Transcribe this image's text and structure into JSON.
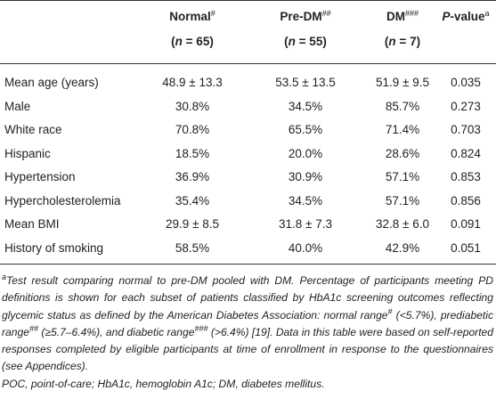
{
  "table": {
    "header": [
      {
        "line1": [
          {
            "text": "Normal",
            "bold": true
          },
          {
            "text": "#",
            "sup": true
          }
        ],
        "line2": [
          {
            "text": "(",
            "bold": true
          },
          {
            "text": "n",
            "bold": true,
            "italic": true
          },
          {
            "text": " = 65)",
            "bold": true
          }
        ]
      },
      {
        "line1": [
          {
            "text": "Pre-DM",
            "bold": true
          },
          {
            "text": "##",
            "sup": true
          }
        ],
        "line2": [
          {
            "text": "(",
            "bold": true
          },
          {
            "text": "n",
            "bold": true,
            "italic": true
          },
          {
            "text": " = 55)",
            "bold": true
          }
        ]
      },
      {
        "line1": [
          {
            "text": "DM",
            "bold": true
          },
          {
            "text": "###",
            "sup": true
          }
        ],
        "line2": [
          {
            "text": "(",
            "bold": true
          },
          {
            "text": "n",
            "bold": true,
            "italic": true
          },
          {
            "text": " = 7)",
            "bold": true
          }
        ]
      },
      {
        "line1": [
          {
            "text": "P",
            "bold": true,
            "italic": true
          },
          {
            "text": "-value",
            "bold": true
          },
          {
            "text": "a",
            "sup": true
          }
        ],
        "line2": []
      }
    ],
    "rows": [
      [
        "Mean age (years)",
        "48.9 ± 13.3",
        "53.5 ± 13.5",
        "51.9 ± 9.5",
        "0.035"
      ],
      [
        "Male",
        "30.8%",
        "34.5%",
        "85.7%",
        "0.273"
      ],
      [
        "White race",
        "70.8%",
        "65.5%",
        "71.4%",
        "0.703"
      ],
      [
        "Hispanic",
        "18.5%",
        "20.0%",
        "28.6%",
        "0.824"
      ],
      [
        "Hypertension",
        "36.9%",
        "30.9%",
        "57.1%",
        "0.853"
      ],
      [
        "Hypercholesterolemia",
        "35.4%",
        "34.5%",
        "57.1%",
        "0.856"
      ],
      [
        "Mean BMI",
        "29.9 ± 8.5",
        "31.8 ± 7.3",
        "32.8 ± 6.0",
        "0.091"
      ],
      [
        "History of smoking",
        "58.5%",
        "40.0%",
        "42.9%",
        "0.051"
      ]
    ]
  },
  "footnote": [
    {
      "text": "a",
      "sup": true
    },
    {
      "text": "Test result comparing normal to pre-DM pooled with DM. Percentage of participants meeting PD definitions is shown for each subset of patients classified by HbA1c screening outcomes reflecting glycemic status as defined by the American Diabetes Association: normal range"
    },
    {
      "text": "#",
      "sup": true
    },
    {
      "text": " (<5.7%), prediabetic range"
    },
    {
      "text": "##",
      "sup": true
    },
    {
      "text": " (≥5.7–6.4%), and diabetic range"
    },
    {
      "text": "###",
      "sup": true
    },
    {
      "text": " (>6.4%) [19]. Data in this table were based on self-reported responses completed by eligible participants at time of enrollment in response to the questionnaires (see Appendices)."
    }
  ],
  "abbreviations": "POC, point-of-care; HbA1c, hemoglobin A1c; DM, diabetes mellitus."
}
